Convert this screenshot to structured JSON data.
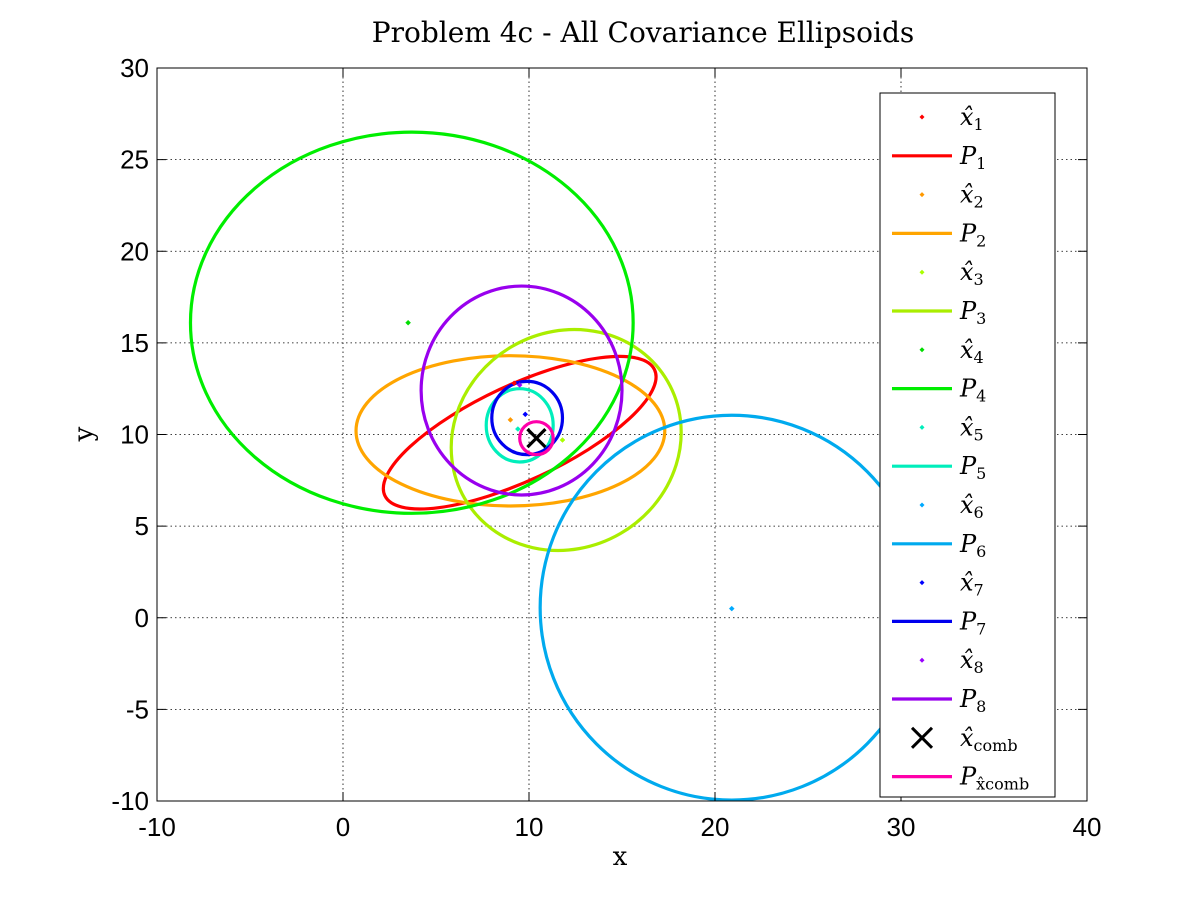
{
  "chart_data": {
    "type": "scatter",
    "title": "Problem 4c - All Covariance Ellipsoids",
    "xlabel": "x",
    "ylabel": "y",
    "xlim": [
      -10,
      40
    ],
    "ylim": [
      -10,
      30
    ],
    "xticks": [
      "-10",
      "0",
      "10",
      "20",
      "30",
      "40"
    ],
    "yticks": [
      "-10",
      "-5",
      "0",
      "5",
      "10",
      "15",
      "20",
      "25",
      "30"
    ],
    "grid": true,
    "legend_position": "right-inside",
    "series": [
      {
        "name_main": "x̂",
        "name_sub": "1",
        "kind": "point",
        "color": "#ff0000",
        "x": 9.2,
        "y": 12.8
      },
      {
        "name_main": "P",
        "name_sub": "1",
        "kind": "ellipse",
        "color": "#ff0000",
        "center": [
          9.5,
          10.1
        ],
        "a": 8.0,
        "b": 2.6,
        "angle": 25
      },
      {
        "name_main": "x̂",
        "name_sub": "2",
        "kind": "point",
        "color": "#ff9900",
        "x": 9.0,
        "y": 10.8
      },
      {
        "name_main": "P",
        "name_sub": "2",
        "kind": "ellipse",
        "color": "#ffa500",
        "center": [
          9.0,
          10.2
        ],
        "a": 8.3,
        "b": 4.1,
        "angle": 0
      },
      {
        "name_main": "x̂",
        "name_sub": "3",
        "kind": "point",
        "color": "#aaff00",
        "x": 11.8,
        "y": 9.7
      },
      {
        "name_main": "P",
        "name_sub": "3",
        "kind": "ellipse",
        "color": "#aaee00",
        "center": [
          12.0,
          9.7
        ],
        "a": 6.3,
        "b": 5.9,
        "angle": 30
      },
      {
        "name_main": "x̂",
        "name_sub": "4",
        "kind": "point",
        "color": "#00dd00",
        "x": 3.5,
        "y": 16.1
      },
      {
        "name_main": "P",
        "name_sub": "4",
        "kind": "ellipse",
        "color": "#00ee00",
        "center": [
          3.7,
          16.1
        ],
        "a": 11.9,
        "b": 10.4,
        "angle": 0
      },
      {
        "name_main": "x̂",
        "name_sub": "5",
        "kind": "point",
        "color": "#00eebb",
        "x": 9.4,
        "y": 10.3
      },
      {
        "name_main": "P",
        "name_sub": "5",
        "kind": "ellipse",
        "color": "#00eebb",
        "center": [
          9.5,
          10.5
        ],
        "a": 1.8,
        "b": 2.0,
        "angle": 0
      },
      {
        "name_main": "x̂",
        "name_sub": "6",
        "kind": "point",
        "color": "#00aaff",
        "x": 20.9,
        "y": 0.5
      },
      {
        "name_main": "P",
        "name_sub": "6",
        "kind": "ellipse",
        "color": "#00aaee",
        "center": [
          20.9,
          0.55
        ],
        "a": 10.3,
        "b": 10.5,
        "angle": 0
      },
      {
        "name_main": "x̂",
        "name_sub": "7",
        "kind": "point",
        "color": "#0000ff",
        "x": 9.8,
        "y": 11.1
      },
      {
        "name_main": "P",
        "name_sub": "7",
        "kind": "ellipse",
        "color": "#0000ee",
        "center": [
          9.9,
          10.9
        ],
        "a": 1.9,
        "b": 2.0,
        "angle": 0
      },
      {
        "name_main": "x̂",
        "name_sub": "8",
        "kind": "point",
        "color": "#9900ff",
        "x": 9.5,
        "y": 12.7
      },
      {
        "name_main": "P",
        "name_sub": "8",
        "kind": "ellipse",
        "color": "#9900ee",
        "center": [
          9.6,
          12.4
        ],
        "a": 5.4,
        "b": 5.7,
        "angle": 0
      },
      {
        "name_main": "x̂",
        "name_sub": "comb",
        "kind": "cross",
        "color": "#000000",
        "x": 10.4,
        "y": 9.8
      },
      {
        "name_main": "P",
        "name_sub": "x̂comb",
        "kind": "ellipse",
        "color": "#ff00aa",
        "center": [
          10.4,
          9.8
        ],
        "a": 0.9,
        "b": 0.9,
        "angle": 0
      }
    ]
  }
}
